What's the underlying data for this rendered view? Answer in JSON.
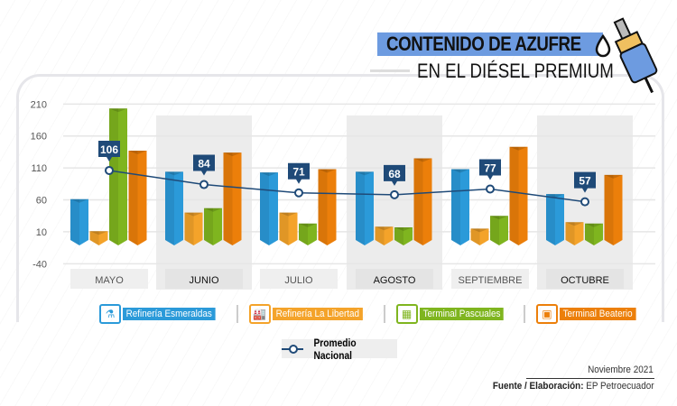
{
  "header": {
    "title_line1": "CONTENIDO DE AZUFRE",
    "title_line2": "EN EL DIÉSEL PREMIUM",
    "icons": [
      "drop-icon",
      "fuel-nozzle-icon"
    ]
  },
  "chart_data": {
    "type": "bar",
    "title": "CONTENIDO DE AZUFRE EN EL DIÉSEL PREMIUM",
    "categories": [
      "MAYO",
      "JUNIO",
      "JULIO",
      "AGOSTO",
      "SEPTIEMBRE",
      "OCTUBRE"
    ],
    "yticks": [
      210,
      160,
      110,
      60,
      10,
      -40
    ],
    "ylim": [
      -40,
      210
    ],
    "grid": true,
    "legend_placement": "bottom",
    "series": [
      {
        "name": "Refinería Esmeraldas",
        "color": "#2b9ad9",
        "values": [
          61,
          104,
          103,
          104,
          108,
          69
        ]
      },
      {
        "name": "Refinería La Libertad",
        "color": "#f4a32a",
        "values": [
          11,
          40,
          40,
          18,
          15,
          25
        ]
      },
      {
        "name": "Terminal Pascuales",
        "color": "#7fb51f",
        "values": [
          203,
          47,
          23,
          17,
          35,
          23
        ]
      },
      {
        "name": "Terminal Beaterio",
        "color": "#ec7f0a",
        "values": [
          137,
          134,
          108,
          125,
          143,
          99
        ]
      }
    ],
    "line_series": {
      "name": "Promedio Nacional",
      "color": "#1f4a78",
      "values": [
        106,
        84,
        71,
        68,
        77,
        57
      ]
    }
  },
  "footer": {
    "date": "Noviembre 2021",
    "source_label": "Fuente / Elaboración:",
    "source_value": "EP Petroecuador"
  }
}
